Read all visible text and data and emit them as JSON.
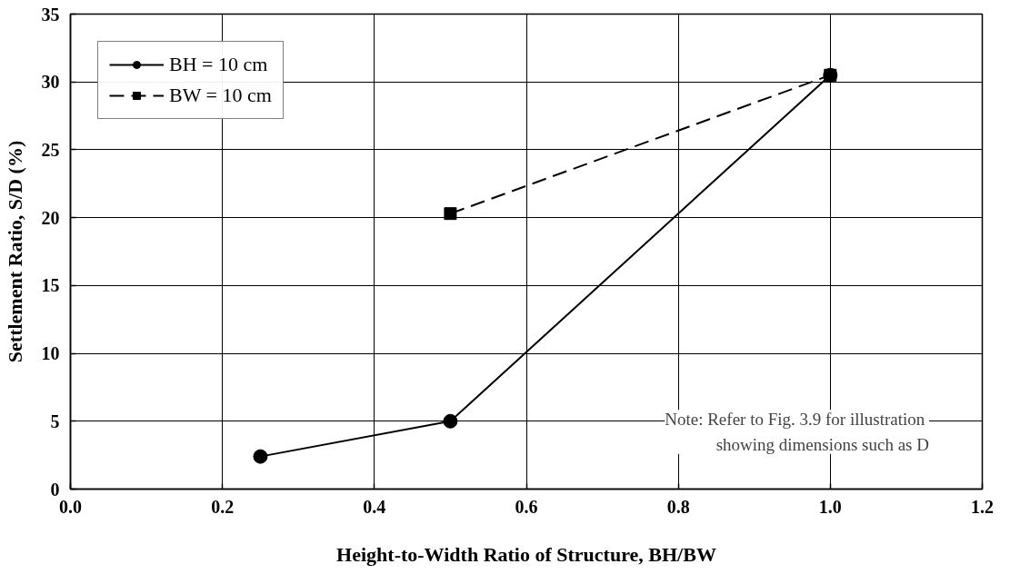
{
  "chart_data": {
    "type": "line",
    "xlabel": "Height-to-Width Ratio of Structure, BH/BW",
    "ylabel": "Settlement Ratio, S/D (%)",
    "xlim": [
      0,
      1.2
    ],
    "ylim": [
      0,
      35
    ],
    "xticks": [
      {
        "value": 0,
        "label": "0.0"
      },
      {
        "value": 0.2,
        "label": "0.2"
      },
      {
        "value": 0.4,
        "label": "0.4"
      },
      {
        "value": 0.6,
        "label": "0.6"
      },
      {
        "value": 0.8,
        "label": "0.8"
      },
      {
        "value": 1.0,
        "label": "1.0"
      },
      {
        "value": 1.2,
        "label": "1.2"
      }
    ],
    "yticks": [
      0,
      5,
      10,
      15,
      20,
      25,
      30,
      35
    ],
    "grid": true,
    "legend": "top left",
    "series": [
      {
        "name": "BH = 10 cm",
        "color": "#000000",
        "x": [
          0.25,
          0.5,
          1.0
        ],
        "values": [
          2.4,
          5.0,
          30.5
        ],
        "marker": "circle",
        "line_style": "solid"
      },
      {
        "name": "BW = 10 cm",
        "color": "#000000",
        "x": [
          0.5,
          1.0
        ],
        "values": [
          20.3,
          30.5
        ],
        "marker": "square",
        "line_style": "dashed"
      }
    ],
    "annotations": [
      "Note:  Refer to Fig. 3.9 for illustration\nshowing dimensions such as D"
    ]
  }
}
